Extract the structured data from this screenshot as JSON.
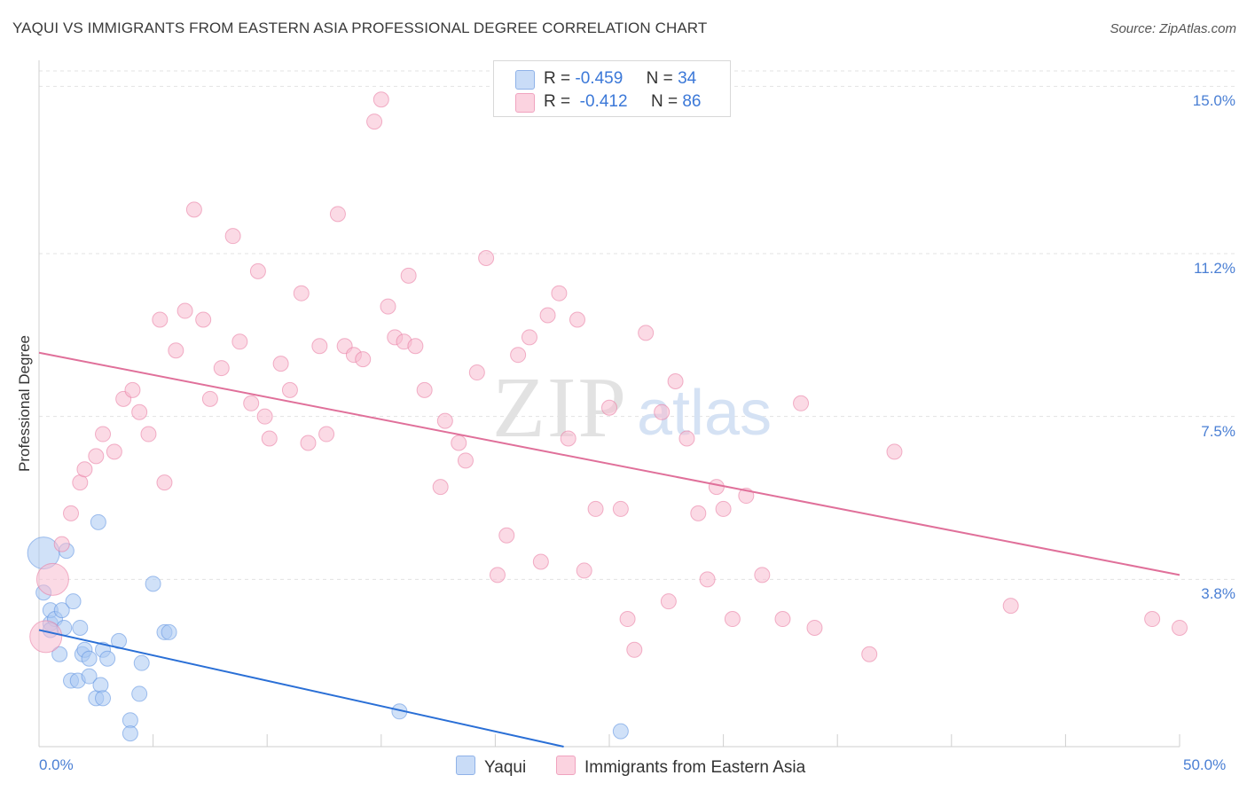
{
  "title": "YAQUI VS IMMIGRANTS FROM EASTERN ASIA PROFESSIONAL DEGREE CORRELATION CHART",
  "source": "Source: ZipAtlas.com",
  "watermark": {
    "zip": "ZIP",
    "atlas": "atlas"
  },
  "legend": {
    "r_label": "R =",
    "n_label": "N =",
    "rows": [
      {
        "r": "-0.459",
        "n": "34",
        "color": "#aac8f3"
      },
      {
        "r": "-0.412",
        "n": "86",
        "color": "#f8bcd0"
      }
    ]
  },
  "chart_data": {
    "type": "scatter",
    "title": "YAQUI VS IMMIGRANTS FROM EASTERN ASIA PROFESSIONAL DEGREE CORRELATION CHART",
    "xlabel": "",
    "ylabel": "Professional Degree",
    "xlim": [
      0,
      50
    ],
    "ylim": [
      0,
      15.35
    ],
    "x_tick_labels": {
      "left": "0.0%",
      "right": "50.0%"
    },
    "y_ticks": [
      {
        "value": 3.8,
        "label": "3.8%"
      },
      {
        "value": 7.5,
        "label": "7.5%"
      },
      {
        "value": 11.2,
        "label": "11.2%"
      },
      {
        "value": 15.0,
        "label": "15.0%"
      }
    ],
    "series": [
      {
        "name": "Yaqui",
        "color": "#5b8fe0",
        "fill": "#aac8f3",
        "trend": {
          "x": [
            0,
            23.0
          ],
          "y": [
            2.65,
            0.0
          ],
          "color": "#2a6fd6"
        },
        "points": [
          [
            0.2,
            4.4,
            "big"
          ],
          [
            0.2,
            3.5
          ],
          [
            0.5,
            2.8
          ],
          [
            0.5,
            3.1
          ],
          [
            0.7,
            2.9
          ],
          [
            0.9,
            2.1
          ],
          [
            1.0,
            3.1
          ],
          [
            1.1,
            2.7
          ],
          [
            1.5,
            3.3
          ],
          [
            1.4,
            1.5
          ],
          [
            1.7,
            1.5
          ],
          [
            1.8,
            2.7
          ],
          [
            1.9,
            2.1
          ],
          [
            2.0,
            2.2
          ],
          [
            2.2,
            2.0
          ],
          [
            2.2,
            1.6
          ],
          [
            2.5,
            1.1
          ],
          [
            2.7,
            1.4
          ],
          [
            2.8,
            1.1
          ],
          [
            2.6,
            5.1
          ],
          [
            2.8,
            2.2
          ],
          [
            3.0,
            2.0
          ],
          [
            3.5,
            2.4
          ],
          [
            4.0,
            0.6
          ],
          [
            4.0,
            0.3
          ],
          [
            4.4,
            1.2
          ],
          [
            4.5,
            1.9
          ],
          [
            5.0,
            3.7
          ],
          [
            5.5,
            2.6
          ],
          [
            5.7,
            2.6
          ],
          [
            1.2,
            4.45
          ],
          [
            15.8,
            0.8
          ],
          [
            25.5,
            0.35
          ],
          [
            0.5,
            2.65
          ]
        ]
      },
      {
        "name": "Immigrants from Eastern Asia",
        "color": "#e8779e",
        "fill": "#f8bcd0",
        "trend": {
          "x": [
            0,
            50.0
          ],
          "y": [
            8.95,
            3.9
          ],
          "color": "#e0709a"
        },
        "points": [
          [
            0.3,
            2.5,
            "big"
          ],
          [
            0.6,
            3.8,
            "big"
          ],
          [
            1.0,
            4.6
          ],
          [
            1.4,
            5.3
          ],
          [
            1.8,
            6.0
          ],
          [
            2.0,
            6.3
          ],
          [
            2.5,
            6.6
          ],
          [
            2.8,
            7.1
          ],
          [
            3.3,
            6.7
          ],
          [
            3.7,
            7.9
          ],
          [
            4.1,
            8.1
          ],
          [
            4.4,
            7.6
          ],
          [
            4.8,
            7.1
          ],
          [
            5.3,
            9.7
          ],
          [
            5.5,
            6.0
          ],
          [
            6.0,
            9.0
          ],
          [
            6.4,
            9.9
          ],
          [
            6.8,
            12.2
          ],
          [
            7.2,
            9.7
          ],
          [
            7.5,
            7.9
          ],
          [
            8.0,
            8.6
          ],
          [
            8.5,
            11.6
          ],
          [
            8.8,
            9.2
          ],
          [
            9.3,
            7.8
          ],
          [
            9.6,
            10.8
          ],
          [
            9.9,
            7.5
          ],
          [
            10.1,
            7.0
          ],
          [
            10.6,
            8.7
          ],
          [
            11.0,
            8.1
          ],
          [
            11.5,
            10.3
          ],
          [
            11.8,
            6.9
          ],
          [
            12.3,
            9.1
          ],
          [
            12.6,
            7.1
          ],
          [
            13.1,
            12.1
          ],
          [
            13.4,
            9.1
          ],
          [
            13.8,
            8.9
          ],
          [
            14.2,
            8.8
          ],
          [
            14.7,
            14.2
          ],
          [
            15.0,
            14.7
          ],
          [
            15.3,
            10.0
          ],
          [
            15.6,
            9.3
          ],
          [
            16.0,
            9.2
          ],
          [
            16.2,
            10.7
          ],
          [
            16.5,
            9.1
          ],
          [
            16.9,
            8.1
          ],
          [
            17.6,
            5.9
          ],
          [
            17.8,
            7.4
          ],
          [
            18.4,
            6.9
          ],
          [
            18.7,
            6.5
          ],
          [
            19.2,
            8.5
          ],
          [
            19.6,
            11.1
          ],
          [
            20.1,
            3.9
          ],
          [
            20.5,
            4.8
          ],
          [
            21.0,
            8.9
          ],
          [
            21.5,
            9.3
          ],
          [
            22.0,
            4.2
          ],
          [
            22.3,
            9.8
          ],
          [
            22.8,
            10.3
          ],
          [
            23.2,
            7.0
          ],
          [
            23.6,
            9.7
          ],
          [
            23.9,
            4.0
          ],
          [
            24.4,
            5.4
          ],
          [
            25.0,
            7.7
          ],
          [
            25.5,
            5.4
          ],
          [
            25.8,
            2.9
          ],
          [
            26.1,
            2.2
          ],
          [
            26.6,
            9.4
          ],
          [
            27.3,
            7.6
          ],
          [
            27.6,
            3.3
          ],
          [
            27.9,
            8.3
          ],
          [
            28.4,
            7.0
          ],
          [
            28.9,
            5.3
          ],
          [
            29.3,
            3.8
          ],
          [
            29.7,
            5.9
          ],
          [
            30.0,
            5.4
          ],
          [
            30.4,
            2.9
          ],
          [
            31.0,
            5.7
          ],
          [
            31.7,
            3.9
          ],
          [
            32.6,
            2.9
          ],
          [
            33.4,
            7.8
          ],
          [
            34.0,
            2.7
          ],
          [
            36.4,
            2.1
          ],
          [
            37.5,
            6.7
          ],
          [
            42.6,
            3.2
          ],
          [
            48.8,
            2.9
          ],
          [
            50.0,
            2.7
          ]
        ]
      }
    ],
    "grid": true,
    "legend_position": "top-center"
  },
  "bottom_legend": {
    "items": [
      {
        "label": "Yaqui",
        "color": "#aac8f3"
      },
      {
        "label": "Immigrants from Eastern Asia",
        "color": "#f8bcd0"
      }
    ]
  }
}
